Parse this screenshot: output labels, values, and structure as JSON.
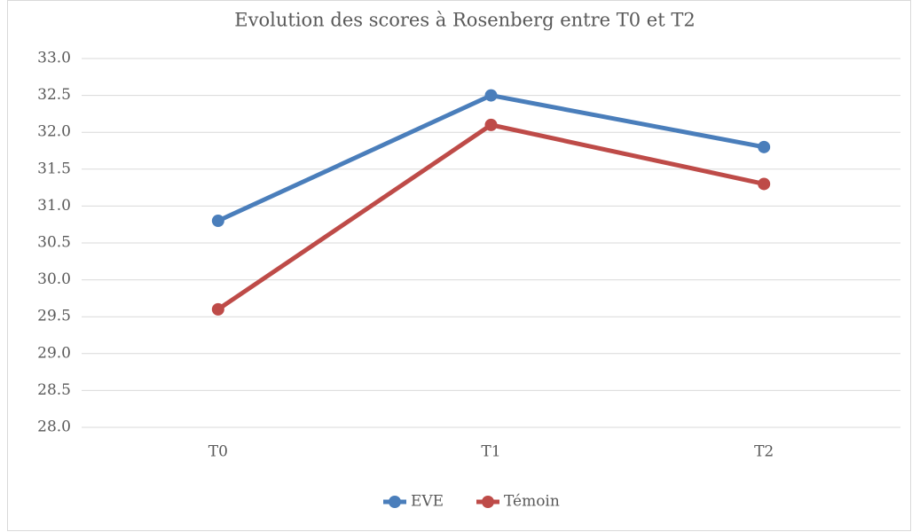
{
  "chart_data": {
    "type": "line",
    "title": "Evolution des scores à Rosenberg entre T0 et T2",
    "categories": [
      "T0",
      "T1",
      "T2"
    ],
    "series": [
      {
        "name": "EVE",
        "color": "#4a7ebb",
        "values": [
          30.8,
          32.5,
          31.8
        ]
      },
      {
        "name": "Témoin",
        "color": "#be4b48",
        "values": [
          29.6,
          32.1,
          31.3
        ]
      }
    ],
    "ylim": [
      28,
      33
    ],
    "yticks": [
      {
        "value": 28,
        "label": "28.0"
      },
      {
        "value": 28.5,
        "label": "28.5"
      },
      {
        "value": 29,
        "label": "29.0"
      },
      {
        "value": 29.5,
        "label": "29.5"
      },
      {
        "value": 30,
        "label": "30.0"
      },
      {
        "value": 30.5,
        "label": "30.5"
      },
      {
        "value": 31,
        "label": "31.0"
      },
      {
        "value": 31.5,
        "label": "31.5"
      },
      {
        "value": 32,
        "label": "32.0"
      },
      {
        "value": 32.5,
        "label": "32.5"
      },
      {
        "value": 33,
        "label": "33.0"
      }
    ],
    "grid": true,
    "legend": "bottom"
  }
}
